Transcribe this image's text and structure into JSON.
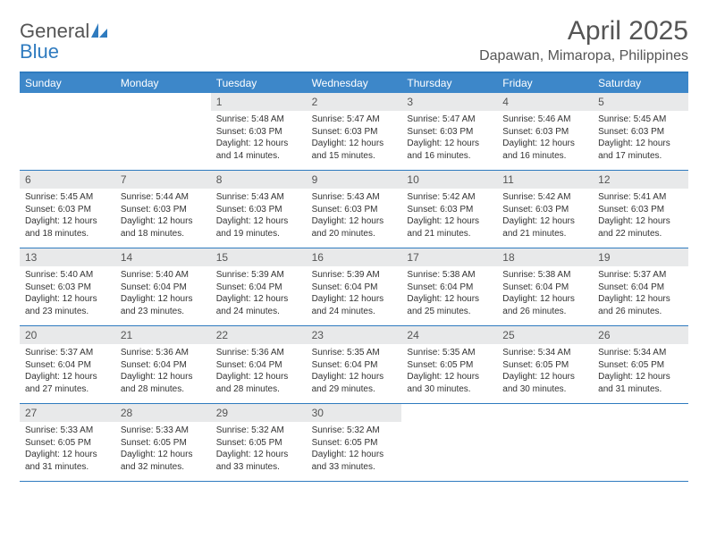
{
  "logo": {
    "general": "General",
    "blue": "Blue"
  },
  "title": "April 2025",
  "location": "Dapawan, Mimaropa, Philippines",
  "colors": {
    "header_bar": "#3d87c9",
    "border": "#2f7bbf",
    "daynum_bg": "#e8e9ea",
    "text": "#333333",
    "title_text": "#555555"
  },
  "day_names": [
    "Sunday",
    "Monday",
    "Tuesday",
    "Wednesday",
    "Thursday",
    "Friday",
    "Saturday"
  ],
  "weeks": [
    [
      null,
      null,
      {
        "n": "1",
        "sr": "Sunrise: 5:48 AM",
        "ss": "Sunset: 6:03 PM",
        "d1": "Daylight: 12 hours",
        "d2": "and 14 minutes."
      },
      {
        "n": "2",
        "sr": "Sunrise: 5:47 AM",
        "ss": "Sunset: 6:03 PM",
        "d1": "Daylight: 12 hours",
        "d2": "and 15 minutes."
      },
      {
        "n": "3",
        "sr": "Sunrise: 5:47 AM",
        "ss": "Sunset: 6:03 PM",
        "d1": "Daylight: 12 hours",
        "d2": "and 16 minutes."
      },
      {
        "n": "4",
        "sr": "Sunrise: 5:46 AM",
        "ss": "Sunset: 6:03 PM",
        "d1": "Daylight: 12 hours",
        "d2": "and 16 minutes."
      },
      {
        "n": "5",
        "sr": "Sunrise: 5:45 AM",
        "ss": "Sunset: 6:03 PM",
        "d1": "Daylight: 12 hours",
        "d2": "and 17 minutes."
      }
    ],
    [
      {
        "n": "6",
        "sr": "Sunrise: 5:45 AM",
        "ss": "Sunset: 6:03 PM",
        "d1": "Daylight: 12 hours",
        "d2": "and 18 minutes."
      },
      {
        "n": "7",
        "sr": "Sunrise: 5:44 AM",
        "ss": "Sunset: 6:03 PM",
        "d1": "Daylight: 12 hours",
        "d2": "and 18 minutes."
      },
      {
        "n": "8",
        "sr": "Sunrise: 5:43 AM",
        "ss": "Sunset: 6:03 PM",
        "d1": "Daylight: 12 hours",
        "d2": "and 19 minutes."
      },
      {
        "n": "9",
        "sr": "Sunrise: 5:43 AM",
        "ss": "Sunset: 6:03 PM",
        "d1": "Daylight: 12 hours",
        "d2": "and 20 minutes."
      },
      {
        "n": "10",
        "sr": "Sunrise: 5:42 AM",
        "ss": "Sunset: 6:03 PM",
        "d1": "Daylight: 12 hours",
        "d2": "and 21 minutes."
      },
      {
        "n": "11",
        "sr": "Sunrise: 5:42 AM",
        "ss": "Sunset: 6:03 PM",
        "d1": "Daylight: 12 hours",
        "d2": "and 21 minutes."
      },
      {
        "n": "12",
        "sr": "Sunrise: 5:41 AM",
        "ss": "Sunset: 6:03 PM",
        "d1": "Daylight: 12 hours",
        "d2": "and 22 minutes."
      }
    ],
    [
      {
        "n": "13",
        "sr": "Sunrise: 5:40 AM",
        "ss": "Sunset: 6:03 PM",
        "d1": "Daylight: 12 hours",
        "d2": "and 23 minutes."
      },
      {
        "n": "14",
        "sr": "Sunrise: 5:40 AM",
        "ss": "Sunset: 6:04 PM",
        "d1": "Daylight: 12 hours",
        "d2": "and 23 minutes."
      },
      {
        "n": "15",
        "sr": "Sunrise: 5:39 AM",
        "ss": "Sunset: 6:04 PM",
        "d1": "Daylight: 12 hours",
        "d2": "and 24 minutes."
      },
      {
        "n": "16",
        "sr": "Sunrise: 5:39 AM",
        "ss": "Sunset: 6:04 PM",
        "d1": "Daylight: 12 hours",
        "d2": "and 24 minutes."
      },
      {
        "n": "17",
        "sr": "Sunrise: 5:38 AM",
        "ss": "Sunset: 6:04 PM",
        "d1": "Daylight: 12 hours",
        "d2": "and 25 minutes."
      },
      {
        "n": "18",
        "sr": "Sunrise: 5:38 AM",
        "ss": "Sunset: 6:04 PM",
        "d1": "Daylight: 12 hours",
        "d2": "and 26 minutes."
      },
      {
        "n": "19",
        "sr": "Sunrise: 5:37 AM",
        "ss": "Sunset: 6:04 PM",
        "d1": "Daylight: 12 hours",
        "d2": "and 26 minutes."
      }
    ],
    [
      {
        "n": "20",
        "sr": "Sunrise: 5:37 AM",
        "ss": "Sunset: 6:04 PM",
        "d1": "Daylight: 12 hours",
        "d2": "and 27 minutes."
      },
      {
        "n": "21",
        "sr": "Sunrise: 5:36 AM",
        "ss": "Sunset: 6:04 PM",
        "d1": "Daylight: 12 hours",
        "d2": "and 28 minutes."
      },
      {
        "n": "22",
        "sr": "Sunrise: 5:36 AM",
        "ss": "Sunset: 6:04 PM",
        "d1": "Daylight: 12 hours",
        "d2": "and 28 minutes."
      },
      {
        "n": "23",
        "sr": "Sunrise: 5:35 AM",
        "ss": "Sunset: 6:04 PM",
        "d1": "Daylight: 12 hours",
        "d2": "and 29 minutes."
      },
      {
        "n": "24",
        "sr": "Sunrise: 5:35 AM",
        "ss": "Sunset: 6:05 PM",
        "d1": "Daylight: 12 hours",
        "d2": "and 30 minutes."
      },
      {
        "n": "25",
        "sr": "Sunrise: 5:34 AM",
        "ss": "Sunset: 6:05 PM",
        "d1": "Daylight: 12 hours",
        "d2": "and 30 minutes."
      },
      {
        "n": "26",
        "sr": "Sunrise: 5:34 AM",
        "ss": "Sunset: 6:05 PM",
        "d1": "Daylight: 12 hours",
        "d2": "and 31 minutes."
      }
    ],
    [
      {
        "n": "27",
        "sr": "Sunrise: 5:33 AM",
        "ss": "Sunset: 6:05 PM",
        "d1": "Daylight: 12 hours",
        "d2": "and 31 minutes."
      },
      {
        "n": "28",
        "sr": "Sunrise: 5:33 AM",
        "ss": "Sunset: 6:05 PM",
        "d1": "Daylight: 12 hours",
        "d2": "and 32 minutes."
      },
      {
        "n": "29",
        "sr": "Sunrise: 5:32 AM",
        "ss": "Sunset: 6:05 PM",
        "d1": "Daylight: 12 hours",
        "d2": "and 33 minutes."
      },
      {
        "n": "30",
        "sr": "Sunrise: 5:32 AM",
        "ss": "Sunset: 6:05 PM",
        "d1": "Daylight: 12 hours",
        "d2": "and 33 minutes."
      },
      null,
      null,
      null
    ]
  ]
}
